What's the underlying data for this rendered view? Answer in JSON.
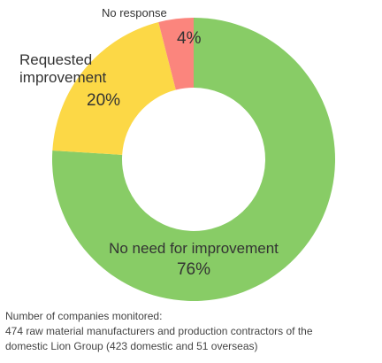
{
  "chart_data": {
    "type": "pie",
    "donut": true,
    "title": "",
    "slices": [
      {
        "label": "No need for improvement",
        "value": 76,
        "value_label": "76%",
        "color": "#88cc66"
      },
      {
        "label": "Requested improvement",
        "value": 20,
        "value_label": "20%",
        "color": "#fcd846"
      },
      {
        "label": "No response",
        "value": 4,
        "value_label": "4%",
        "color": "#fb857d"
      }
    ]
  },
  "note": {
    "heading": "Number of companies monitored:",
    "line1": "474 raw material manufacturers and production contractors of the",
    "line2": "domestic Lion Group (423 domestic and 51 overseas)"
  }
}
